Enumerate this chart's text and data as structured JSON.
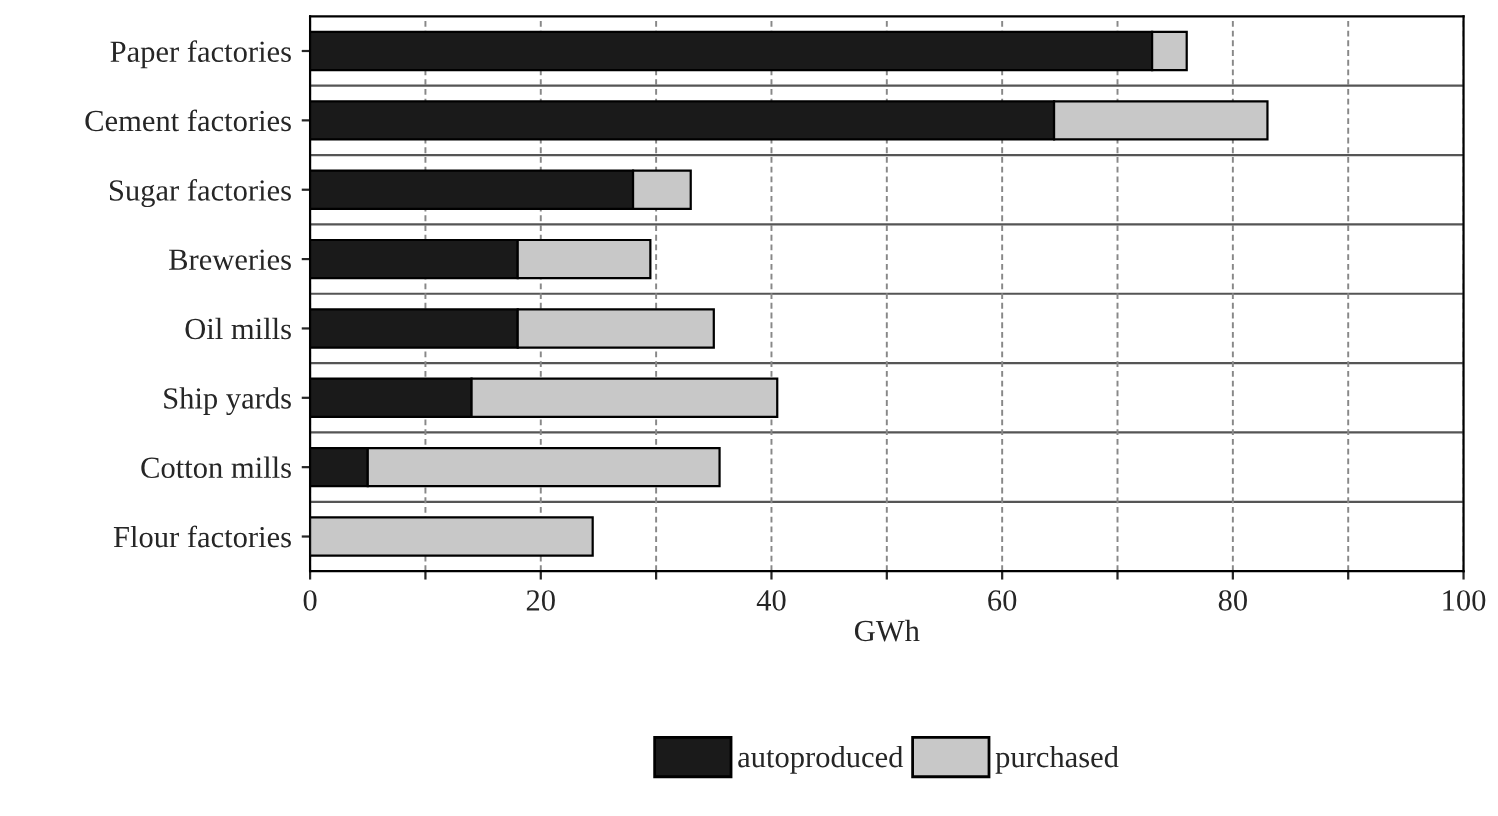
{
  "chart_data": {
    "type": "bar",
    "orientation": "horizontal",
    "stacked": true,
    "xlabel": "GWh",
    "categories": [
      "Paper factories",
      "Cement factories",
      "Sugar factories",
      "Breweries",
      "Oil mills",
      "Ship yards",
      "Cotton mills",
      "Flour factories"
    ],
    "series": [
      {
        "name": "autoproduced",
        "color": "#1a1a1a",
        "values": [
          73,
          64.5,
          28,
          18,
          18,
          14,
          5,
          0
        ]
      },
      {
        "name": "purchased",
        "color": "#c8c8c8",
        "values": [
          3,
          18.5,
          5,
          11.5,
          17,
          26.5,
          30.5,
          24.5
        ]
      }
    ],
    "xlim": [
      0,
      100
    ],
    "xticks": [
      0,
      {
        "value": 10,
        "label": null
      },
      20,
      {
        "value": 30,
        "label": null
      },
      40,
      {
        "value": 50,
        "label": null
      },
      60,
      {
        "value": 70,
        "label": null
      },
      80,
      {
        "value": 90,
        "label": null
      },
      100
    ],
    "grid": true,
    "legend": "bottom"
  }
}
